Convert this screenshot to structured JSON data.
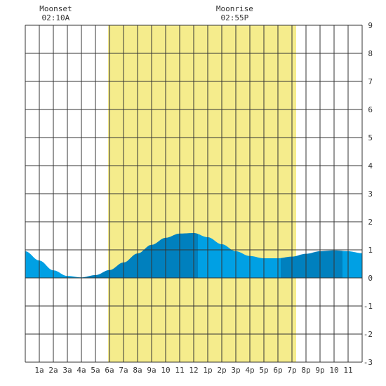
{
  "chart_data": {
    "type": "area",
    "title": "",
    "xlabel": "",
    "ylabel": "",
    "x_ticks": [
      "1a",
      "2a",
      "3a",
      "4a",
      "5a",
      "6a",
      "7a",
      "8a",
      "9a",
      "10",
      "11",
      "12",
      "1p",
      "2p",
      "3p",
      "4p",
      "5p",
      "6p",
      "7p",
      "8p",
      "9p",
      "10",
      "11"
    ],
    "xlim": [
      0,
      24
    ],
    "ylim": [
      -3,
      9
    ],
    "y_ticks": [
      "-3",
      "-2",
      "-1",
      "0",
      "1",
      "2",
      "3",
      "4",
      "5",
      "6",
      "7",
      "8",
      "9"
    ],
    "grid": true,
    "daylight": {
      "start_hour": 5.9,
      "end_hour": 19.3,
      "color": "#f5ec8c"
    },
    "annotations": [
      {
        "label": "Moonset",
        "time": "02:10A",
        "hour": 2.17
      },
      {
        "label": "Moonrise",
        "time": "02:55P",
        "hour": 14.92
      }
    ],
    "series": [
      {
        "x": [
          0,
          1,
          2,
          3,
          4,
          5,
          6,
          7,
          8,
          9,
          10,
          11,
          12,
          13,
          14,
          15,
          16,
          17,
          18,
          19,
          20,
          21,
          22,
          23,
          24
        ],
        "values": [
          0.95,
          0.62,
          0.27,
          0.07,
          0.02,
          0.1,
          0.28,
          0.55,
          0.87,
          1.18,
          1.43,
          1.58,
          1.6,
          1.45,
          1.2,
          0.95,
          0.78,
          0.7,
          0.7,
          0.76,
          0.86,
          0.95,
          0.98,
          0.95,
          0.88
        ]
      }
    ],
    "shading_segments": [
      {
        "from": 0,
        "to": 4.1,
        "color": "#00a0e4"
      },
      {
        "from": 4.1,
        "to": 12.3,
        "color": "#0080be"
      },
      {
        "from": 12.3,
        "to": 18.2,
        "color": "#00a0e4"
      },
      {
        "from": 18.2,
        "to": 22.6,
        "color": "#0080be"
      },
      {
        "from": 22.6,
        "to": 24,
        "color": "#00a0e4"
      }
    ]
  }
}
